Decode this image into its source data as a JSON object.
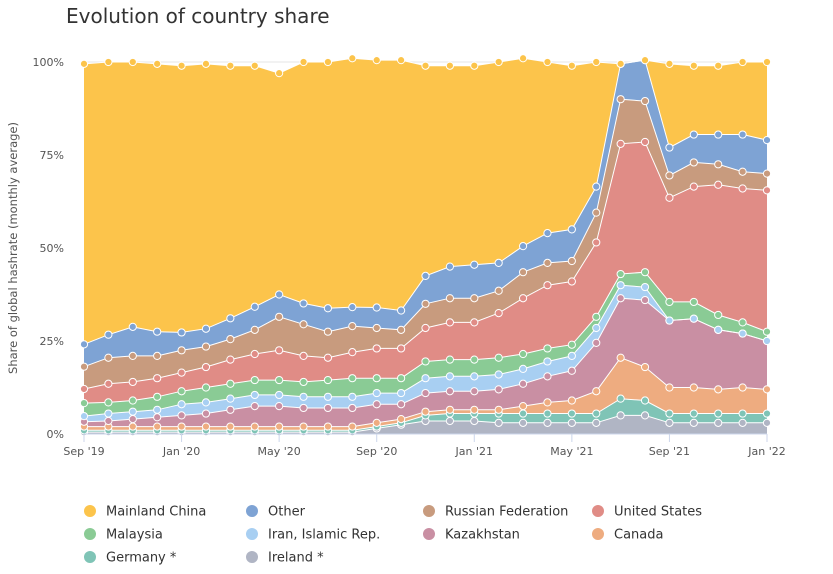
{
  "title": "Evolution of country share",
  "chart_data": {
    "type": "area",
    "stacked": true,
    "title": "Evolution of country share",
    "xlabel": "",
    "ylabel": "Share of global hashrate (monthly average)",
    "ylim": [
      0,
      100
    ],
    "y_ticks": [
      "0%",
      "25%",
      "50%",
      "75%",
      "100%"
    ],
    "x_tick_labels": [
      "Sep '19",
      "Jan '20",
      "May '20",
      "Sep '20",
      "Jan '21",
      "May '21",
      "Sep '21",
      "Jan '22"
    ],
    "x_tick_indices": [
      0,
      4,
      8,
      12,
      16,
      20,
      24,
      28
    ],
    "x": [
      "Sep 2019",
      "Oct 2019",
      "Nov 2019",
      "Dec 2019",
      "Jan 2020",
      "Feb 2020",
      "Mar 2020",
      "Apr 2020",
      "May 2020",
      "Jun 2020",
      "Jul 2020",
      "Aug 2020",
      "Sep 2020",
      "Oct 2020",
      "Nov 2020",
      "Dec 2020",
      "Jan 2021",
      "Feb 2021",
      "Mar 2021",
      "Apr 2021",
      "May 2021",
      "Jun 2021",
      "Jul 2021",
      "Aug 2021",
      "Sep 2021",
      "Oct 2021",
      "Nov 2021",
      "Dec 2021",
      "Jan 2022"
    ],
    "grid": true,
    "legend_position": "bottom",
    "series": [
      {
        "name": "Ireland *",
        "color": "#b0b5c4",
        "values": [
          0.5,
          0.5,
          0.5,
          0.5,
          0.5,
          0.5,
          0.5,
          0.5,
          0.5,
          0.5,
          0.5,
          0.5,
          1.5,
          2.5,
          3.5,
          3.5,
          3.5,
          3,
          3,
          3,
          3,
          3,
          5,
          5,
          3,
          3,
          3,
          3,
          3
        ]
      },
      {
        "name": "Germany *",
        "color": "#7fc4b6",
        "values": [
          0.5,
          0.5,
          0.5,
          0.5,
          0.5,
          0.5,
          0.5,
          0.5,
          0.5,
          0.5,
          0.5,
          0.5,
          0.5,
          0.5,
          1.5,
          2,
          2,
          2.5,
          2.5,
          2.5,
          2.5,
          2.5,
          4.5,
          4,
          2.5,
          2.5,
          2.5,
          2.5,
          2.5
        ]
      },
      {
        "name": "Canada",
        "color": "#eeac80",
        "values": [
          1,
          1,
          1,
          1,
          1,
          1,
          1,
          1,
          1,
          1,
          1,
          1,
          1,
          1,
          1,
          1,
          1,
          1,
          2,
          3,
          3.5,
          6,
          11,
          9,
          7,
          7,
          6.5,
          7,
          6.5
        ]
      },
      {
        "name": "Kazakhstan",
        "color": "#c98fa3",
        "values": [
          1.3,
          1.5,
          2,
          2.5,
          3,
          3.5,
          4.5,
          5.5,
          5.5,
          5,
          5,
          5,
          5,
          4,
          5,
          5,
          5,
          5.5,
          6,
          7,
          8,
          13,
          16,
          18,
          18,
          18.5,
          16,
          14.5,
          13
        ]
      },
      {
        "name": "Iran, Islamic Rep.",
        "color": "#a8cff2",
        "values": [
          1.5,
          2,
          2,
          2,
          3,
          3,
          3,
          3,
          3,
          3,
          3,
          3,
          3,
          3,
          4,
          4,
          4,
          4,
          4,
          4,
          4,
          4,
          3.5,
          3.5,
          0,
          0,
          0,
          0,
          0
        ]
      },
      {
        "name": "Malaysia",
        "color": "#8acb95",
        "values": [
          3.5,
          3,
          3,
          3.5,
          3.5,
          4,
          4,
          4,
          4,
          4,
          4.5,
          5,
          4,
          4,
          4.5,
          4.5,
          4.5,
          4.5,
          4,
          3.5,
          3,
          3,
          3,
          4,
          5,
          4.5,
          4,
          3,
          2.5
        ]
      },
      {
        "name": "United States",
        "color": "#e08c86",
        "values": [
          3.8,
          5,
          5,
          5,
          5,
          5.5,
          6.5,
          7,
          8,
          7,
          6,
          7,
          8,
          8,
          9,
          10,
          10,
          12,
          15,
          17,
          17,
          20,
          35,
          35,
          28,
          31,
          35,
          36,
          38
        ]
      },
      {
        "name": "Russian Federation",
        "color": "#c89b7e",
        "values": [
          6,
          7,
          7,
          6,
          6,
          5.5,
          5.5,
          6.5,
          9,
          8.5,
          7,
          7,
          5.5,
          5,
          6.5,
          6.5,
          6.5,
          6,
          7,
          6,
          5.5,
          8,
          12,
          11,
          6,
          6.5,
          5.5,
          4.5,
          4.5
        ]
      },
      {
        "name": "Other",
        "color": "#7ea3d4",
        "values": [
          6,
          6.2,
          7.8,
          6.5,
          4.8,
          4.8,
          5.6,
          6.2,
          6,
          5.6,
          6.3,
          5.1,
          5.5,
          5.2,
          7.5,
          8.5,
          9,
          7.5,
          7,
          8,
          8.5,
          7,
          9.5,
          11,
          7.5,
          7.5,
          8,
          10,
          9
        ]
      },
      {
        "name": "Mainland China",
        "color": "#fcc44b",
        "values": [
          75.4,
          73.3,
          71.2,
          72,
          71.7,
          71.2,
          67.9,
          64.8,
          59.5,
          64.9,
          66.2,
          66.9,
          66.5,
          67.3,
          56.5,
          54,
          53.5,
          54,
          50.5,
          46,
          44,
          33.5,
          0,
          0,
          22.5,
          18.5,
          18.5,
          19.5,
          21
        ]
      }
    ],
    "legend_order": [
      "Mainland China",
      "Other",
      "Russian Federation",
      "United States",
      "Malaysia",
      "Iran, Islamic Rep.",
      "Kazakhstan",
      "Canada",
      "Germany *",
      "Ireland *"
    ]
  }
}
